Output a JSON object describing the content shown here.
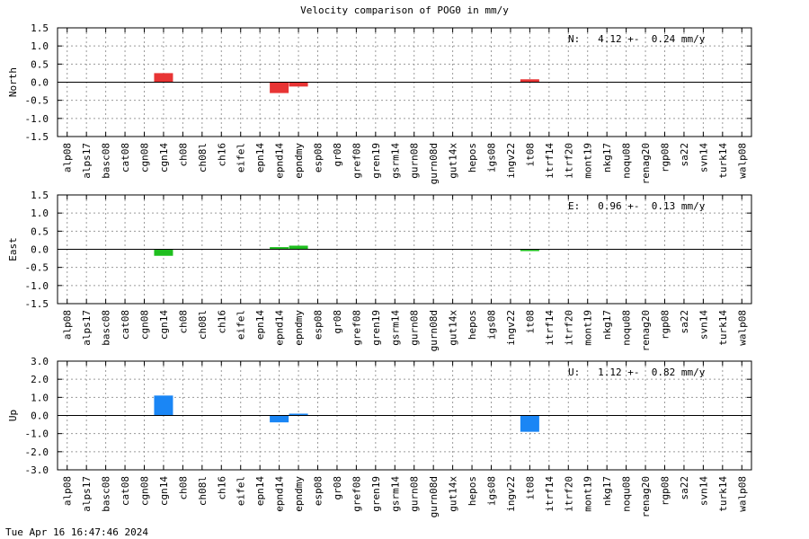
{
  "title": "Velocity comparison of POG0 in mm/y",
  "footer_date": "Tue Apr 16 16:47:46 2024",
  "stations": [
    "alp08",
    "alps17",
    "basc08",
    "cat08",
    "cgn08",
    "cgn14",
    "ch08",
    "ch08l",
    "ch16",
    "eifel",
    "epn14",
    "epnd14",
    "epndmy",
    "esp08",
    "gr08",
    "gref08",
    "gren19",
    "gsrm14",
    "gurn08",
    "gurn08d",
    "gut14x",
    "hepos",
    "igs08",
    "ingv22",
    "it08",
    "itrf14",
    "itrf20",
    "mont19",
    "nkg17",
    "noqu08",
    "renag20",
    "rgp08",
    "sa22",
    "svn14",
    "turk14",
    "walp08"
  ],
  "chart_data": [
    {
      "type": "bar",
      "ylabel": "North",
      "ylim": [
        -1.5,
        1.5
      ],
      "yticks": [
        1.5,
        1.0,
        0.5,
        0.0,
        -0.5,
        -1.0,
        -1.5
      ],
      "ytick_labels": [
        "1.5",
        "1.0",
        "0.5",
        "0.0",
        "-0.5",
        "-1.0",
        "-1.5"
      ],
      "color": "#e83434",
      "annotation": "N:   4.12 +-  0.24 mm/y",
      "grid": true,
      "values": {
        "cgn14": 0.25,
        "epnd14": -0.3,
        "epndmy": -0.12,
        "it08": 0.08
      }
    },
    {
      "type": "bar",
      "ylabel": "East",
      "ylim": [
        -1.5,
        1.5
      ],
      "yticks": [
        1.5,
        1.0,
        0.5,
        0.0,
        -0.5,
        -1.0,
        -1.5
      ],
      "ytick_labels": [
        "1.5",
        "1.0",
        "0.5",
        "0.0",
        "-0.5",
        "-1.0",
        "-1.5"
      ],
      "color": "#1fbe1f",
      "annotation": "E:   0.96 +-  0.13 mm/y",
      "grid": true,
      "values": {
        "cgn14": -0.18,
        "epnd14": 0.06,
        "epndmy": 0.1,
        "it08": -0.05
      }
    },
    {
      "type": "bar",
      "ylabel": "Up",
      "ylim": [
        -3.0,
        3.0
      ],
      "yticks": [
        3.0,
        2.0,
        1.0,
        0.0,
        -1.0,
        -2.0,
        -3.0
      ],
      "ytick_labels": [
        "3.0",
        "2.0",
        "1.0",
        "0.0",
        "-1.0",
        "-2.0",
        "-3.0"
      ],
      "color": "#1a86f5",
      "annotation": "U:   1.12 +-  0.82 mm/y",
      "grid": true,
      "values": {
        "cgn14": 1.1,
        "epnd14": -0.38,
        "epndmy": 0.1,
        "it08": -0.9
      }
    }
  ]
}
